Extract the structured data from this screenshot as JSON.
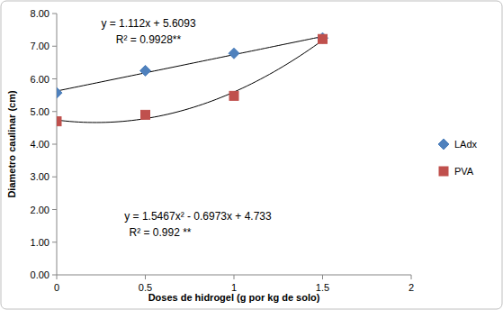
{
  "chart_data": {
    "type": "scatter",
    "x_label": "Doses de hidrogel (g por kg de solo)",
    "y_label": "Diametro caulinar (cm)",
    "x": [
      0,
      0.5,
      1,
      1.5
    ],
    "series": [
      {
        "name": "LAdx",
        "color": "#4f81bd",
        "marker": "diamond",
        "line_style": "linear-fit",
        "values": [
          5.57,
          6.25,
          6.78,
          7.25
        ]
      },
      {
        "name": "PVA",
        "color": "#c0504d",
        "marker": "square",
        "line_style": "quadratic-fit",
        "values": [
          4.7,
          4.9,
          5.48,
          7.22
        ]
      }
    ],
    "annotations": [
      "y = 1.112x + 5.6093",
      "R² = 0.9928**",
      "y = 1.5467x² - 0.6973x + 4.733",
      "R² = 0.992 **"
    ],
    "xlim": [
      0,
      2
    ],
    "xticks": [
      0,
      0.5,
      1,
      1.5,
      2
    ],
    "ylim": [
      0,
      8
    ],
    "yticks": [
      {
        "value": 0,
        "label": "0.00"
      },
      {
        "value": 1,
        "label": "1.00"
      },
      {
        "value": 2,
        "label": "2.00"
      },
      {
        "value": 3,
        "label": "3.00"
      },
      {
        "value": 4,
        "label": "4.00"
      },
      {
        "value": 5,
        "label": "5.00"
      },
      {
        "value": 6,
        "label": "6.00"
      },
      {
        "value": 7,
        "label": "7.00"
      },
      {
        "value": 8,
        "label": "8.00"
      }
    ],
    "grid": false,
    "legend": "right"
  }
}
